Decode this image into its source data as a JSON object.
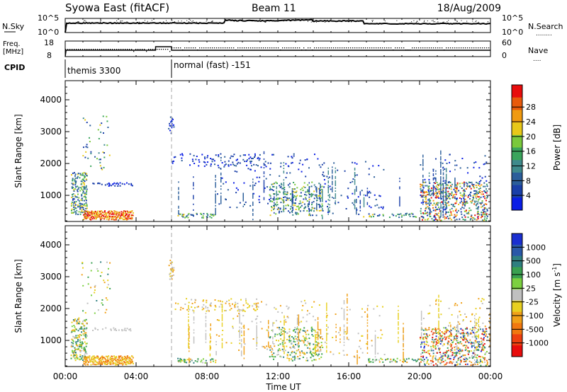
{
  "header": {
    "station": "Syowa East (fitACF)",
    "beam": "Beam 11",
    "date": "18/Aug/2009"
  },
  "strip_labels": {
    "nsky": "N.Sky",
    "nsearch": "N.Search",
    "freq": "Freq.",
    "freq_unit": "[MHz]",
    "nave": "Nave",
    "cpid": "CPID",
    "nsky_ticks": [
      "10^5",
      "10^0"
    ],
    "freq_ticks": [
      "18",
      "8"
    ],
    "nave_ticks": [
      "60",
      "0"
    ]
  },
  "cpid": [
    {
      "label": "themis 3300",
      "start_hour": 0,
      "end_hour": 6.0
    },
    {
      "label": "normal (fast) -151",
      "start_hour": 6.0,
      "end_hour": 24
    }
  ],
  "legend_markers": {
    "nsearch": "........",
    "nave": "...."
  },
  "chart_data": [
    {
      "type": "heatmap",
      "name": "power",
      "xlabel": "",
      "ylabel": "Slant Range [km]",
      "xlim": [
        0,
        24
      ],
      "ylim": [
        180,
        4600
      ],
      "x_ticks": [
        {
          "v": 0,
          "label": "00:00"
        },
        {
          "v": 4,
          "label": "04:00"
        },
        {
          "v": 8,
          "label": "08:00"
        },
        {
          "v": 12,
          "label": "12:00"
        },
        {
          "v": 16,
          "label": "16:00"
        },
        {
          "v": 20,
          "label": "20:00"
        },
        {
          "v": 24,
          "label": "00:00"
        }
      ],
      "y_ticks": [
        1000,
        2000,
        3000,
        4000
      ],
      "colorbar": {
        "label": "Power [dB]",
        "colors": [
          "#0a1ee6",
          "#1a3fa8",
          "#2b5e9a",
          "#3f8a8c",
          "#3aa55c",
          "#7ac93c",
          "#e8c818",
          "#f09a10",
          "#e85a0c",
          "#e80c0c"
        ],
        "ticks": [
          "4",
          "8",
          "12",
          "16",
          "20",
          "24",
          "28"
        ]
      }
    },
    {
      "type": "heatmap",
      "name": "velocity",
      "xlabel": "Time UT",
      "ylabel": "Slant Range [km]",
      "xlim": [
        0,
        24
      ],
      "ylim": [
        180,
        4600
      ],
      "x_ticks": [
        {
          "v": 0,
          "label": "00:00"
        },
        {
          "v": 4,
          "label": "04:00"
        },
        {
          "v": 8,
          "label": "08:00"
        },
        {
          "v": 12,
          "label": "12:00"
        },
        {
          "v": 16,
          "label": "16:00"
        },
        {
          "v": 20,
          "label": "20:00"
        },
        {
          "v": 24,
          "label": "00:00"
        }
      ],
      "y_ticks": [
        1000,
        2000,
        3000,
        4000
      ],
      "colorbar": {
        "label": "Velocity [m s",
        "label_sup": "-1",
        "label_end": "]",
        "colors": [
          "#1a2fd0",
          "#2a58a8",
          "#2f7f80",
          "#3aa050",
          "#7cd040",
          "#c0c0c0",
          "#e8d020",
          "#f0a018",
          "#f07810",
          "#ee4010",
          "#e80c0c"
        ],
        "ticks": [
          "1000",
          "500",
          "100",
          "25",
          "-25",
          "-100",
          "-500",
          "-1000"
        ]
      }
    }
  ]
}
